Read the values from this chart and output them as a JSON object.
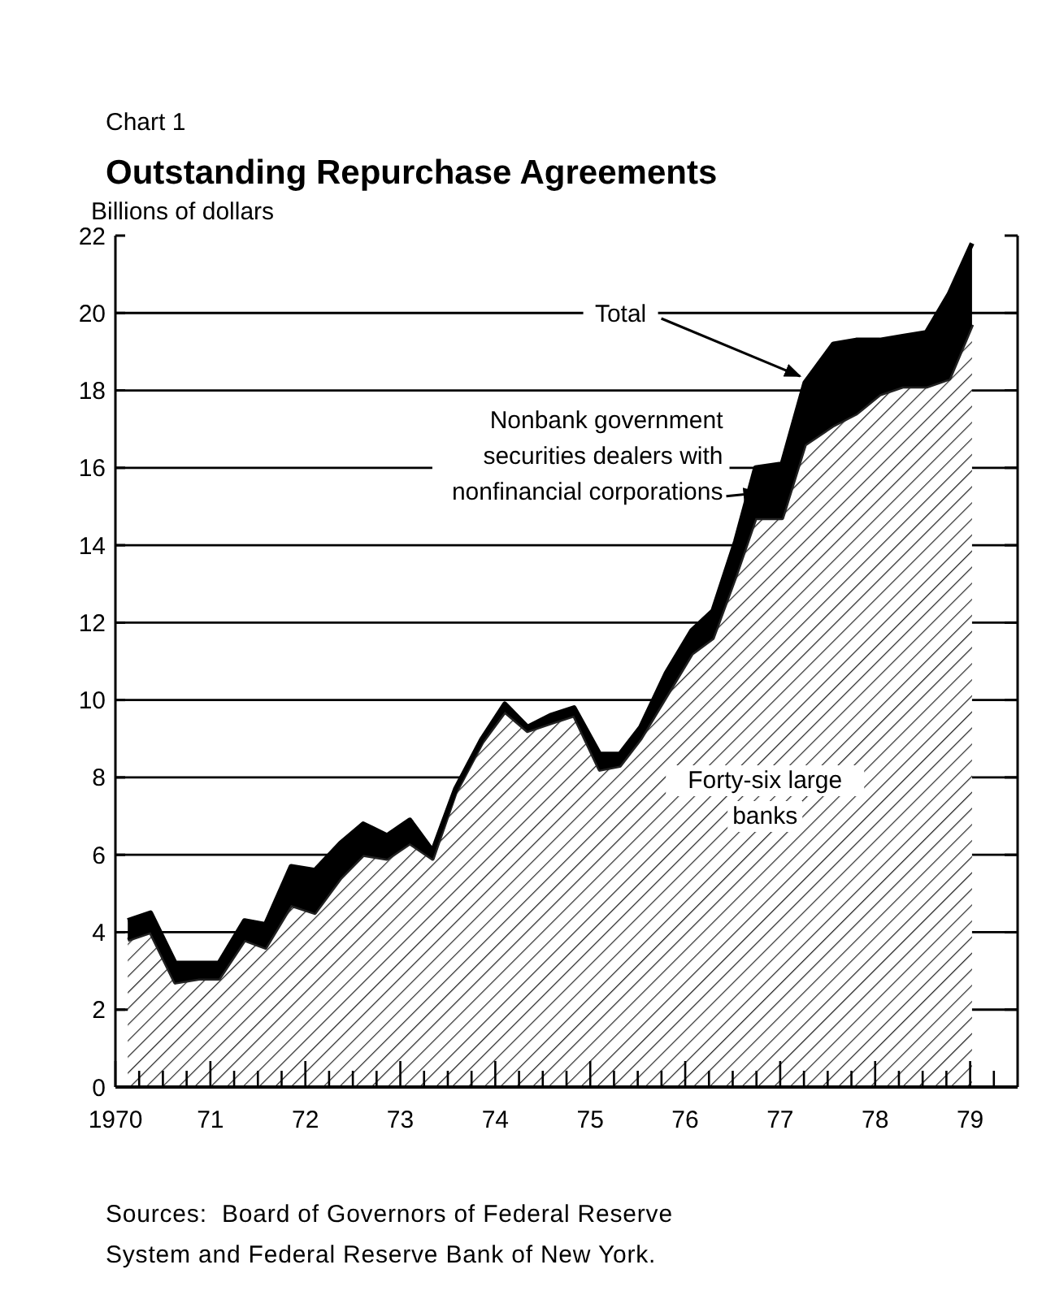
{
  "chart_data": {
    "type": "area",
    "stacked": true,
    "subtitle": "Chart 1",
    "title": "Outstanding Repurchase Agreements",
    "ylabel": "Billions of dollars",
    "x": [
      1970.13,
      1970.37,
      1970.63,
      1970.88,
      1971.09,
      1971.36,
      1971.58,
      1971.85,
      1972.1,
      1972.37,
      1972.61,
      1972.86,
      1973.1,
      1973.34,
      1973.58,
      1973.86,
      1974.1,
      1974.34,
      1974.58,
      1974.83,
      1975.1,
      1975.31,
      1975.53,
      1975.8,
      1976.07,
      1976.29,
      1976.53,
      1976.74,
      1977.02,
      1977.26,
      1977.56,
      1977.8,
      1978.05,
      1978.29,
      1978.54,
      1978.78,
      1979.02
    ],
    "series": [
      {
        "name": "Forty-six large banks",
        "color": "#222222",
        "values": [
          3.8,
          4.0,
          2.7,
          2.8,
          2.8,
          3.8,
          3.6,
          4.7,
          4.5,
          5.4,
          6.0,
          5.9,
          6.3,
          5.9,
          7.6,
          8.9,
          9.7,
          9.2,
          9.4,
          9.6,
          8.2,
          8.3,
          9.0,
          10.1,
          11.2,
          11.6,
          13.2,
          14.7,
          14.7,
          16.6,
          17.1,
          17.4,
          17.9,
          18.1,
          18.1,
          18.3,
          19.7
        ]
      },
      {
        "name": "Nonbank government securities dealers with nonfinancial corporations",
        "color": "#000000",
        "values": [
          0.5,
          0.5,
          0.5,
          0.4,
          0.4,
          0.5,
          0.6,
          1.0,
          1.1,
          0.9,
          0.8,
          0.6,
          0.6,
          0.2,
          0.1,
          0.1,
          0.2,
          0.1,
          0.2,
          0.2,
          0.4,
          0.3,
          0.3,
          0.6,
          0.6,
          0.7,
          0.9,
          1.3,
          1.4,
          1.6,
          2.1,
          1.9,
          1.4,
          1.3,
          1.4,
          2.2,
          2.1
        ]
      }
    ],
    "annotations": [
      {
        "text": "Total",
        "x": 1977.26,
        "y": 18.2
      },
      "Sources:  Board of Governors of Federal Reserve System and Federal Reserve Bank of New York."
    ],
    "xlim": [
      1970,
      1979.5
    ],
    "xticks": [
      1970,
      {
        "value": 1970.25,
        "label": null
      },
      {
        "value": 1970.5,
        "label": null
      },
      {
        "value": 1970.75,
        "label": null
      },
      {
        "value": 1971,
        "label": "71"
      },
      {
        "value": 1971.25,
        "label": null
      },
      {
        "value": 1971.5,
        "label": null
      },
      {
        "value": 1971.75,
        "label": null
      },
      {
        "value": 1972,
        "label": "72"
      },
      {
        "value": 1972.25,
        "label": null
      },
      {
        "value": 1972.5,
        "label": null
      },
      {
        "value": 1972.75,
        "label": null
      },
      {
        "value": 1973,
        "label": "73"
      },
      {
        "value": 1973.25,
        "label": null
      },
      {
        "value": 1973.5,
        "label": null
      },
      {
        "value": 1973.75,
        "label": null
      },
      {
        "value": 1974,
        "label": "74"
      },
      {
        "value": 1974.25,
        "label": null
      },
      {
        "value": 1974.5,
        "label": null
      },
      {
        "value": 1974.75,
        "label": null
      },
      {
        "value": 1975,
        "label": "75"
      },
      {
        "value": 1975.25,
        "label": null
      },
      {
        "value": 1975.5,
        "label": null
      },
      {
        "value": 1975.75,
        "label": null
      },
      {
        "value": 1976,
        "label": "76"
      },
      {
        "value": 1976.25,
        "label": null
      },
      {
        "value": 1976.5,
        "label": null
      },
      {
        "value": 1976.75,
        "label": null
      },
      {
        "value": 1977,
        "label": "77"
      },
      {
        "value": 1977.25,
        "label": null
      },
      {
        "value": 1977.5,
        "label": null
      },
      {
        "value": 1977.75,
        "label": null
      },
      {
        "value": 1978,
        "label": "78"
      },
      {
        "value": 1978.25,
        "label": null
      },
      {
        "value": 1978.5,
        "label": null
      },
      {
        "value": 1978.75,
        "label": null
      },
      {
        "value": 1979,
        "label": "79"
      },
      {
        "value": 1979.25,
        "label": null
      }
    ],
    "ylim": [
      0,
      22
    ],
    "yticks": [
      0,
      2,
      4,
      6,
      8,
      10,
      12,
      14,
      16,
      18,
      20,
      22
    ],
    "grid": "y",
    "legend": false
  }
}
